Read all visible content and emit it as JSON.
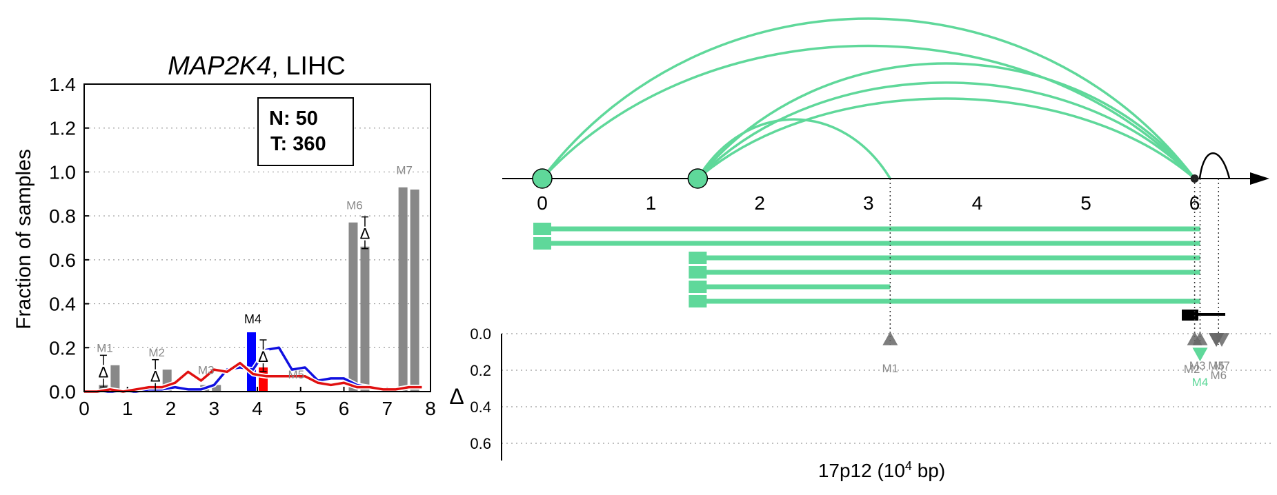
{
  "colors": {
    "accent": "#5fd89a",
    "grey_bar": "#888888",
    "blue_line": "#1010e0",
    "red_line": "#e01010",
    "blue_bar": "#0000ff",
    "red_bar": "#ff0000",
    "grid": "#999999"
  },
  "chart_data": [
    {
      "type": "bar",
      "title_italic": "MAP2K4",
      "title_rest": ", LIHC",
      "ylabel": "Fraction of samples",
      "xlim": [
        0,
        8
      ],
      "ylim": [
        0,
        1.4
      ],
      "x_ticks": [
        "0",
        "1",
        "2",
        "3",
        "4",
        "5",
        "6",
        "7",
        "8"
      ],
      "y_ticks": [
        "0.0",
        "0.2",
        "0.4",
        "0.6",
        "0.8",
        "1.0",
        "1.2",
        "1.4"
      ],
      "grid": "horizontal dotted",
      "counts_box": {
        "n": "N: 50",
        "t": "T: 360"
      },
      "delta_symbol": "Δ",
      "markers": [
        {
          "label": "M1",
          "x": 0.58,
          "normal": 0.03,
          "tumor": 0.12,
          "label_y": 0.18,
          "delta": true,
          "delta_y": 0.09
        },
        {
          "label": "M2",
          "x": 1.78,
          "normal": 0.03,
          "tumor": 0.1,
          "label_y": 0.16,
          "delta": true,
          "delta_y": 0.07
        },
        {
          "label": "M3",
          "x": 2.92,
          "normal": 0.03,
          "tumor": 0.03,
          "label_y": 0.08,
          "delta": false
        },
        {
          "label": "M4",
          "x": 4.0,
          "normal": 0.27,
          "tumor": 0.11,
          "label_y": 0.31,
          "delta": true,
          "delta_y": 0.16,
          "highlight": true
        },
        {
          "label": "M5",
          "x": 5.0,
          "normal": 0.0,
          "tumor": 0.0,
          "label_y": 0.06,
          "delta": false
        },
        {
          "label": "M6",
          "x": 6.35,
          "normal": 0.77,
          "tumor": 0.66,
          "label_y": 0.83,
          "delta": true,
          "delta_y": 0.72
        },
        {
          "label": "M7",
          "x": 7.5,
          "normal": 0.93,
          "tumor": 0.92,
          "label_y": 0.99,
          "delta": false
        }
      ],
      "series": [
        {
          "name": "",
          "color": "blue",
          "x": [
            0,
            0.3,
            0.6,
            0.9,
            1.2,
            1.5,
            1.8,
            2.1,
            2.4,
            2.7,
            3.0,
            3.3,
            3.6,
            3.9,
            4.2,
            4.5,
            4.8,
            5.1,
            5.4,
            5.7,
            6.0,
            6.3,
            6.6,
            6.9,
            7.2,
            7.5,
            7.8
          ],
          "y": [
            0,
            0,
            0,
            0,
            0,
            0.01,
            0.01,
            0.02,
            0.01,
            0.01,
            0.03,
            0.1,
            0.11,
            0.1,
            0.19,
            0.2,
            0.1,
            0.11,
            0.05,
            0.06,
            0.06,
            0.03,
            0.02,
            0.01,
            0.01,
            0.02,
            0.02
          ]
        },
        {
          "name": "",
          "color": "red",
          "x": [
            0,
            0.3,
            0.6,
            0.9,
            1.2,
            1.5,
            1.8,
            2.1,
            2.4,
            2.7,
            3.0,
            3.3,
            3.6,
            3.9,
            4.2,
            4.5,
            4.8,
            5.1,
            5.4,
            5.7,
            6.0,
            6.3,
            6.6,
            6.9,
            7.2,
            7.5,
            7.8
          ],
          "y": [
            0,
            0,
            0.01,
            0,
            0.01,
            0.02,
            0.02,
            0.04,
            0.09,
            0.05,
            0.1,
            0.09,
            0.13,
            0.08,
            0.07,
            0.07,
            0.07,
            0.07,
            0.04,
            0.03,
            0.04,
            0.02,
            0.02,
            0.01,
            0.01,
            0.02,
            0.02
          ]
        }
      ]
    },
    {
      "type": "scatter",
      "xlabel_main": "17p12 (10",
      "xlabel_exp": "4",
      "xlabel_tail": " bp)",
      "ylabel": "Δ",
      "xlim": [
        0,
        6.5
      ],
      "ylim": [
        0,
        0.7
      ],
      "x_ticks": [
        "0",
        "1",
        "2",
        "3",
        "4",
        "5",
        "6"
      ],
      "y_ticks": [
        "0.0",
        "0.2",
        "0.4",
        "0.6"
      ],
      "arcs": [
        {
          "from": 0.0,
          "to": 6.0,
          "height": 1.0
        },
        {
          "from": 0.0,
          "to": 6.0,
          "height": 0.83
        },
        {
          "from": 1.43,
          "to": 6.0,
          "height": 0.72
        },
        {
          "from": 1.43,
          "to": 6.0,
          "height": 0.6
        },
        {
          "from": 1.43,
          "to": 6.0,
          "height": 0.5
        },
        {
          "from": 1.43,
          "to": 3.2,
          "height": 0.37
        }
      ],
      "junction_nodes": [
        0.0,
        1.43
      ],
      "transcripts": [
        {
          "start": 0.0,
          "end": 6.05,
          "row": 0
        },
        {
          "start": 0.0,
          "end": 6.05,
          "row": 1
        },
        {
          "start": 1.43,
          "end": 6.05,
          "row": 2
        },
        {
          "start": 1.43,
          "end": 6.05,
          "row": 3
        },
        {
          "start": 1.43,
          "end": 3.2,
          "row": 4
        },
        {
          "start": 1.43,
          "end": 6.05,
          "row": 5
        }
      ],
      "points": [
        {
          "label": "M1",
          "x": 3.2,
          "delta": 0.03,
          "direction": "up",
          "accent": false
        },
        {
          "label": "M2",
          "x": 6.0,
          "delta": 0.03,
          "direction": "up",
          "accent": false
        },
        {
          "label": "M3",
          "x": 6.05,
          "delta": 0.03,
          "direction": "up",
          "accent": false
        },
        {
          "label": "M4",
          "x": 6.05,
          "delta": 0.11,
          "direction": "down",
          "accent": true
        },
        {
          "label": "M5",
          "x": 6.2,
          "delta": 0.03,
          "direction": "down",
          "accent": false
        },
        {
          "label": "M6",
          "x": 6.2,
          "delta": 0.03,
          "direction": "down",
          "accent": false
        },
        {
          "label": "M7",
          "x": 6.25,
          "delta": 0.03,
          "direction": "down",
          "accent": false
        }
      ]
    }
  ]
}
